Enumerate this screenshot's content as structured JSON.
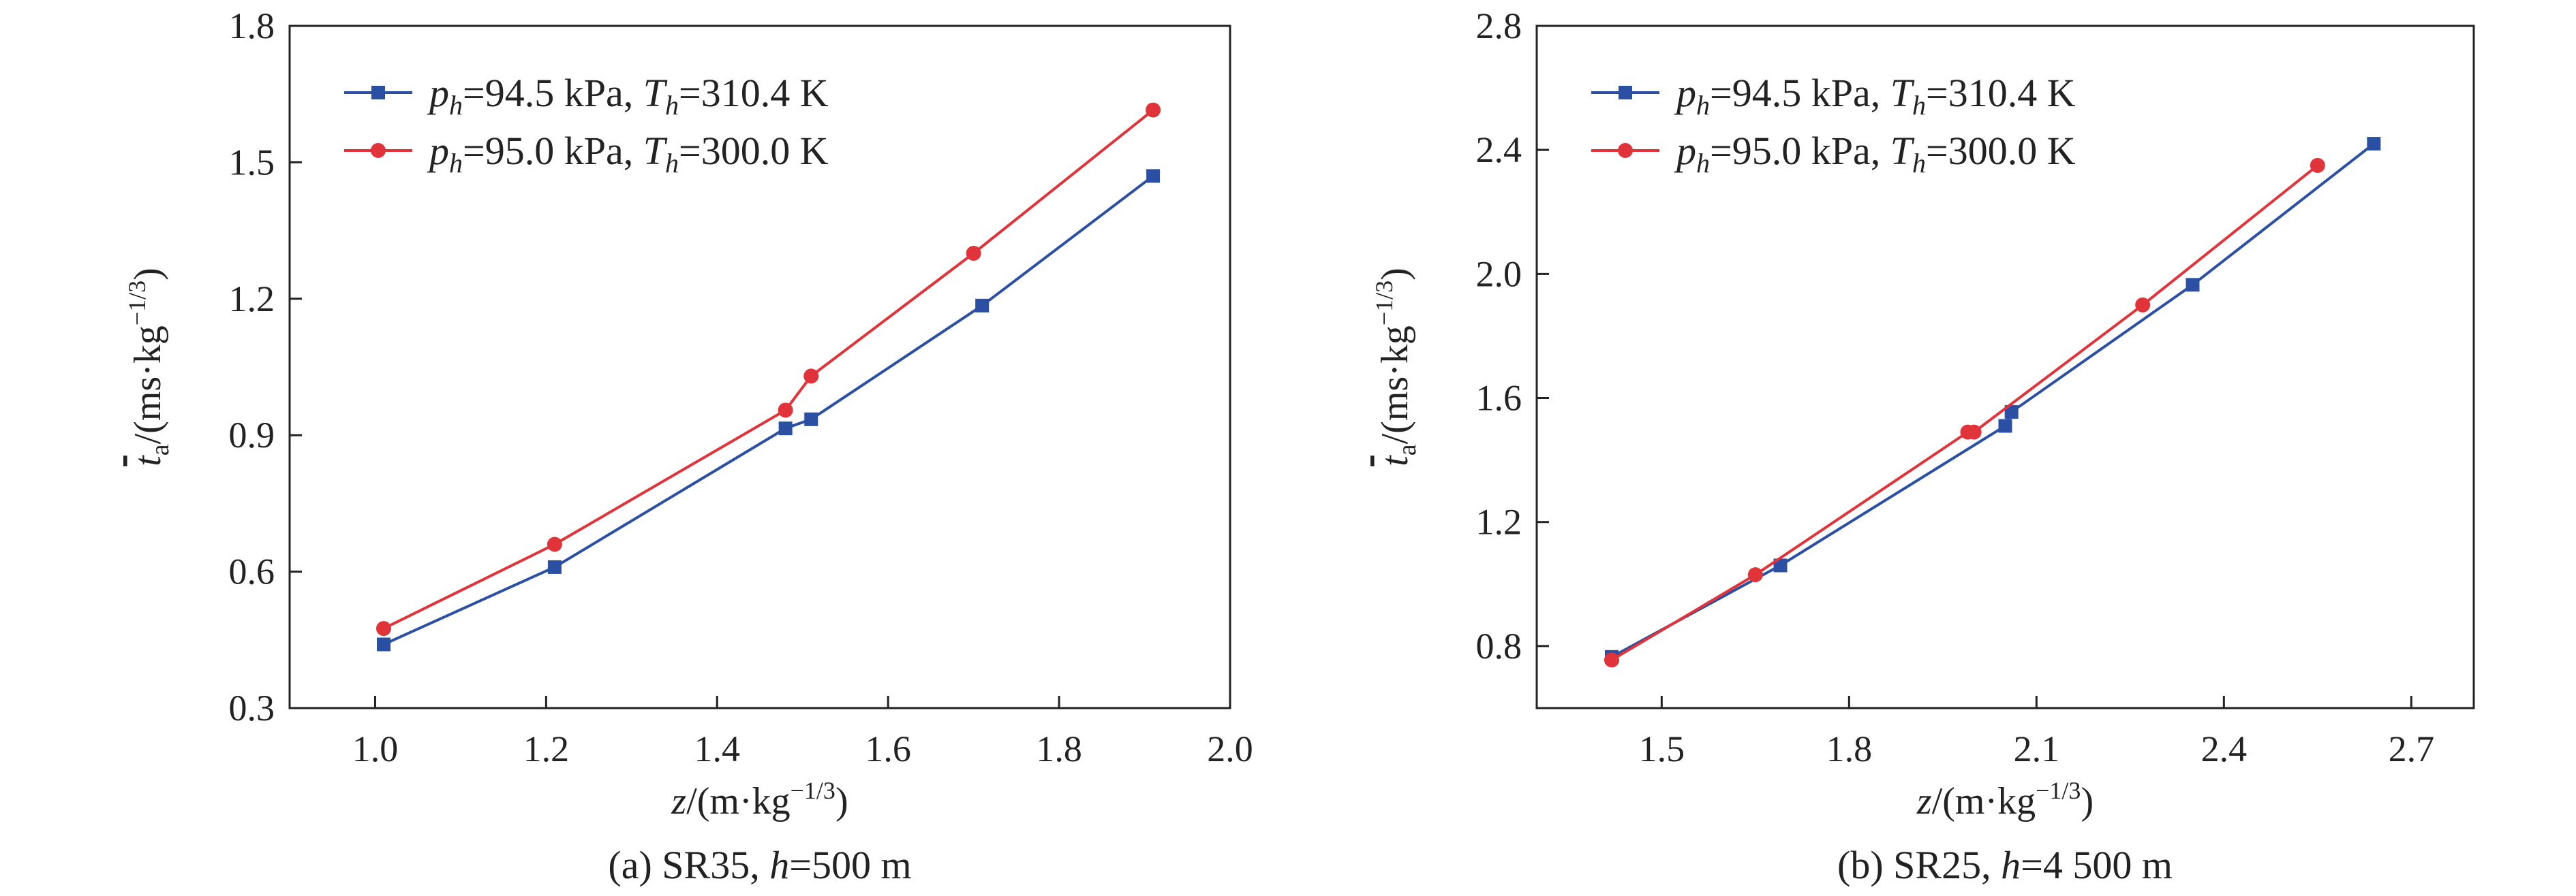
{
  "colors": {
    "series_blue": "#2b4fa3",
    "series_red": "#e0343a"
  },
  "chart_data": [
    {
      "type": "line",
      "caption": "(a) SR35, h=500 m",
      "caption_pre": "(a) SR35, ",
      "caption_var": "h",
      "caption_post": "=500 m",
      "xlabel": {
        "var": "z",
        "unit": "/(m·kg",
        "exp": "−1/3",
        "close": ")"
      },
      "ylabel": {
        "var": "t",
        "sub": "a",
        "unit": "/(ms·kg",
        "exp": "−1/3",
        "close": ")"
      },
      "xlim": [
        0.9,
        2.0
      ],
      "ylim": [
        0.3,
        1.8
      ],
      "xticks": [
        "1.0",
        "1.2",
        "1.4",
        "1.6",
        "1.8",
        "2.0"
      ],
      "yticks": [
        "0.3",
        "0.6",
        "0.9",
        "1.2",
        "1.5",
        "1.8"
      ],
      "grid": false,
      "legend_position": "top-left",
      "series": [
        {
          "name": "ph=94.5 kPa, Th=310.4 K",
          "legend": {
            "p_val": "=94.5 kPa, ",
            "t_val": "=310.4 K"
          },
          "marker": "square",
          "color": "#2b4fa3",
          "x": [
            1.01,
            1.21,
            1.48,
            1.51,
            1.71,
            1.91
          ],
          "y": [
            0.44,
            0.61,
            0.915,
            0.935,
            1.185,
            1.47
          ]
        },
        {
          "name": "ph=95.0 kPa, Th=300.0 K",
          "legend": {
            "p_val": "=95.0 kPa, ",
            "t_val": "=300.0 K"
          },
          "marker": "circle",
          "color": "#e0343a",
          "x": [
            1.01,
            1.21,
            1.48,
            1.51,
            1.7,
            1.91
          ],
          "y": [
            0.475,
            0.66,
            0.955,
            1.03,
            1.3,
            1.615
          ]
        }
      ]
    },
    {
      "type": "line",
      "caption": "(b) SR25, h=4 500 m",
      "caption_pre": "(b) SR25, ",
      "caption_var": "h",
      "caption_post": "=4 500 m",
      "xlabel": {
        "var": "z",
        "unit": "/(m·kg",
        "exp": "−1/3",
        "close": ")"
      },
      "ylabel": {
        "var": "t",
        "sub": "a",
        "unit": "/(ms·kg",
        "exp": "−1/3",
        "close": ")"
      },
      "xlim": [
        1.3,
        2.8
      ],
      "ylim": [
        0.6,
        2.8
      ],
      "xticks": [
        "1.5",
        "1.8",
        "2.1",
        "2.4",
        "2.7"
      ],
      "yticks": [
        "0.8",
        "1.2",
        "1.6",
        "2.0",
        "2.4",
        "2.8"
      ],
      "grid": false,
      "legend_position": "top-left",
      "series": [
        {
          "name": "ph=94.5 kPa, Th=310.4 K",
          "legend": {
            "p_val": "=94.5 kPa, ",
            "t_val": "=310.4 K"
          },
          "marker": "square",
          "color": "#2b4fa3",
          "x": [
            1.42,
            1.69,
            2.05,
            2.06,
            2.35,
            2.64
          ],
          "y": [
            0.765,
            1.06,
            1.51,
            1.555,
            1.965,
            2.42
          ]
        },
        {
          "name": "ph=95.0 kPa, Th=300.0 K",
          "legend": {
            "p_val": "=95.0 kPa, ",
            "t_val": "=300.0 K"
          },
          "marker": "circle",
          "color": "#e0343a",
          "x": [
            1.42,
            1.65,
            1.99,
            2.0,
            2.27,
            2.55
          ],
          "y": [
            0.755,
            1.03,
            1.49,
            1.49,
            1.9,
            2.35
          ]
        }
      ]
    }
  ]
}
